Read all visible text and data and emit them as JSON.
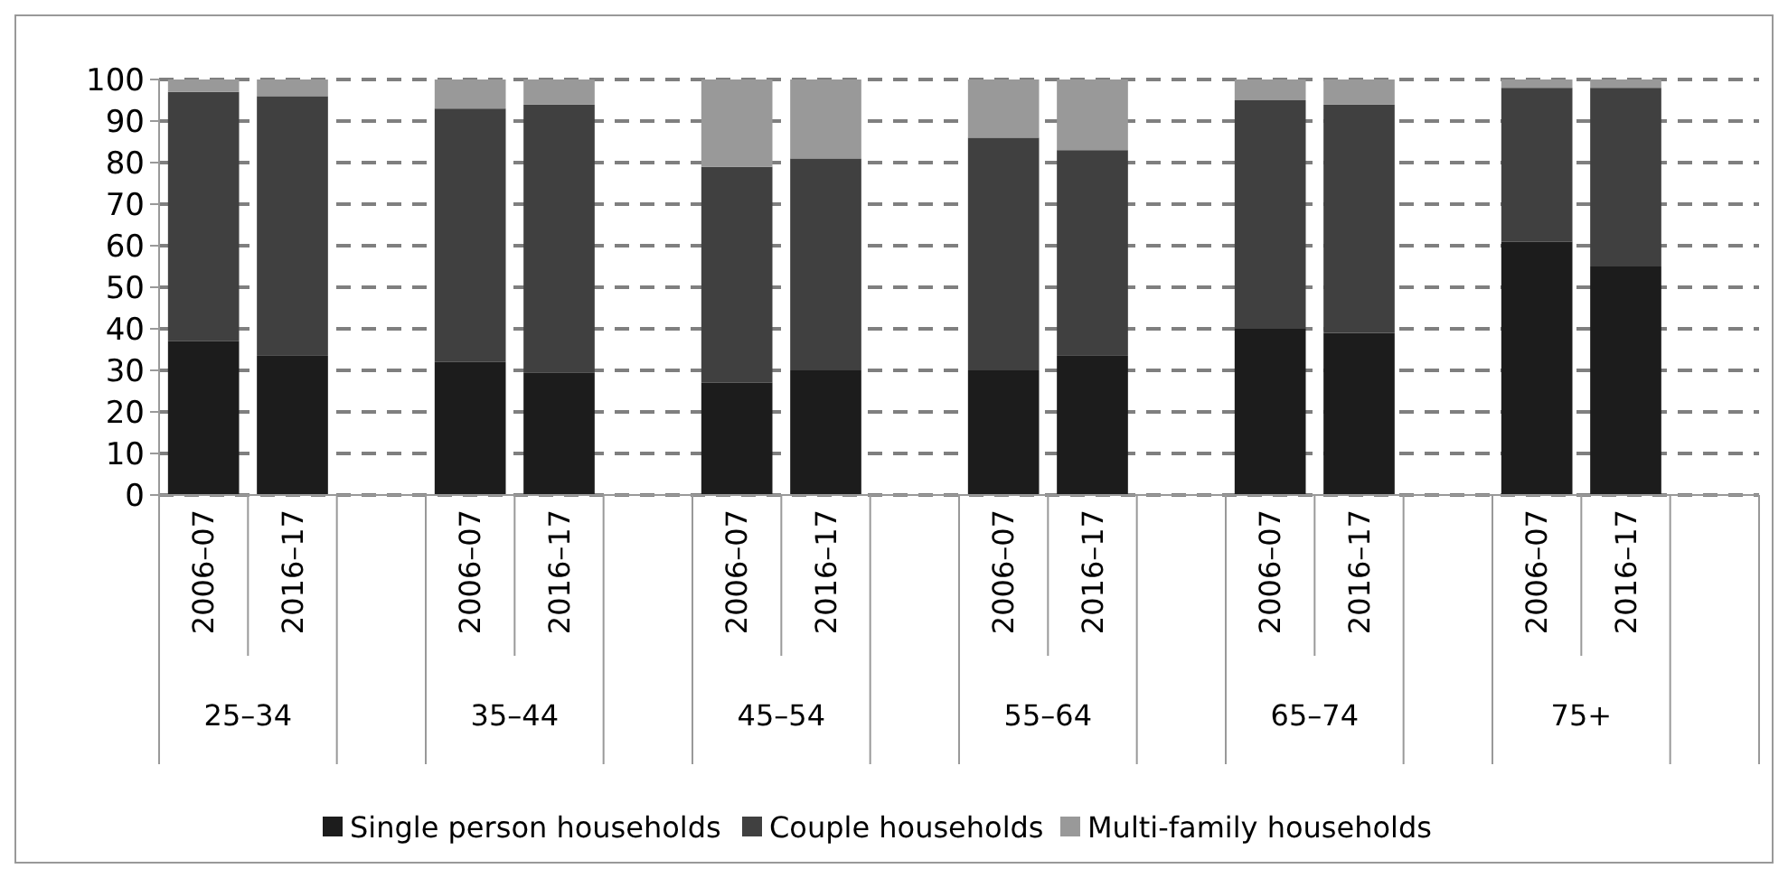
{
  "chart_data": {
    "type": "bar",
    "stacked": true,
    "categories": [
      "2006–07",
      "2016–17",
      null,
      "2006–07",
      "2016–17",
      null,
      "2006–07",
      "2016–17",
      null,
      "2006–07",
      "2016–17",
      null,
      "2006–07",
      "2016–17",
      null,
      "2006–07",
      "2016–17",
      null
    ],
    "series": [
      {
        "name": "Single person households",
        "color": "#1c1c1c",
        "values": [
          37,
          33.5,
          null,
          32,
          29.5,
          null,
          27,
          30,
          null,
          30,
          33.5,
          null,
          40,
          39,
          null,
          61,
          55,
          null
        ]
      },
      {
        "name": "Couple households",
        "color": "#404040",
        "values": [
          60,
          62.5,
          null,
          61,
          64.5,
          null,
          52,
          51,
          null,
          56,
          49.5,
          null,
          55,
          55,
          null,
          37,
          43,
          null
        ]
      },
      {
        "name": "Multi-family households",
        "color": "#999999",
        "values": [
          3,
          4,
          null,
          7,
          6,
          null,
          21,
          19,
          null,
          14,
          17,
          null,
          5,
          6,
          null,
          2,
          2,
          null
        ]
      }
    ],
    "annotations": [
      "25–34",
      "35–44",
      "45–54",
      "55–64",
      "65–74",
      "75+"
    ],
    "ylim": [
      0,
      100
    ],
    "yticks": [
      0,
      10,
      20,
      30,
      40,
      50,
      60,
      70,
      80,
      90,
      100
    ],
    "grid": "y",
    "legend": "bottom"
  }
}
